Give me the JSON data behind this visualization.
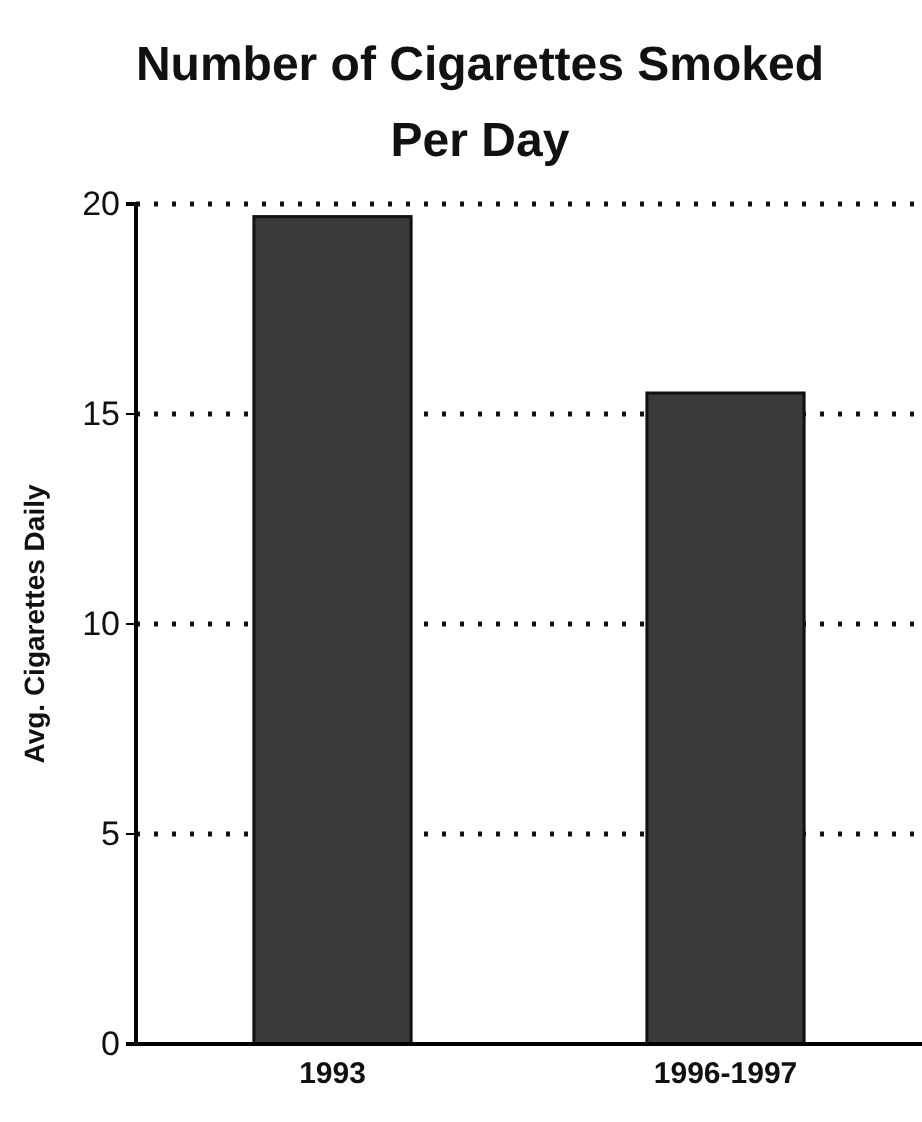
{
  "chart_data": {
    "type": "bar",
    "title": "Number of Cigarettes Smoked Per Day",
    "ylabel": "Avg. Cigarettes Daily",
    "categories": [
      "1993",
      "1996-1997"
    ],
    "values": [
      19.7,
      15.5
    ],
    "color": "#3a3a3a",
    "ylim": [
      0,
      20
    ],
    "yticks": [
      0,
      5,
      10,
      15,
      20
    ],
    "grid": "y"
  }
}
